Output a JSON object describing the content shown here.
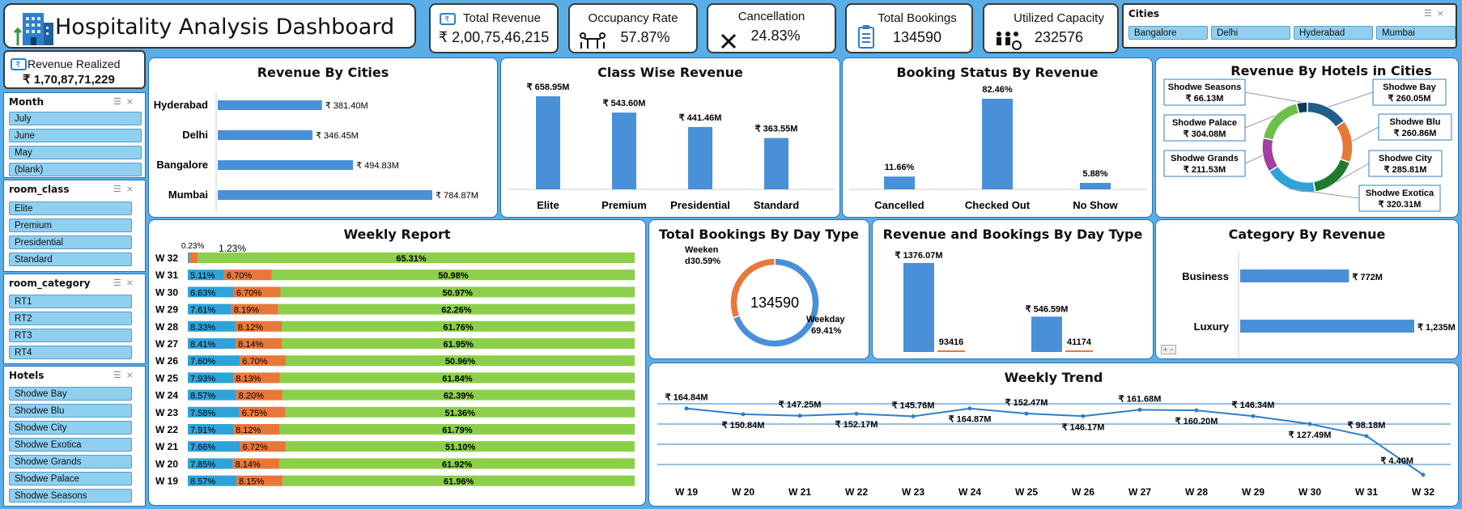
{
  "header": {
    "title": "Hospitality Analysis Dashboard"
  },
  "kpis": {
    "total_revenue": {
      "label": "Total Revenue",
      "value": "₹ 2,00,75,46,215"
    },
    "occupancy": {
      "label": "Occupancy Rate",
      "value": "57.87%"
    },
    "cancellation": {
      "label": "Cancellation",
      "value": "24.83%"
    },
    "bookings": {
      "label": "Total Bookings",
      "value": "134590"
    },
    "capacity": {
      "label": "Utilized Capacity",
      "value": "232576"
    },
    "realized": {
      "label": "Revenue Realized",
      "value": "₹ 1,70,87,71,229"
    }
  },
  "slicers": {
    "cities": {
      "title": "Cities",
      "items": [
        "Bangalore",
        "Delhi",
        "Hyderabad",
        "Mumbai"
      ]
    },
    "month": {
      "title": "Month",
      "items": [
        "July",
        "June",
        "May",
        "(blank)"
      ]
    },
    "room_class": {
      "title": "room_class",
      "items": [
        "Elite",
        "Premium",
        "Presidential",
        "Standard"
      ]
    },
    "room_category": {
      "title": "room_category",
      "items": [
        "RT1",
        "RT2",
        "RT3",
        "RT4"
      ]
    },
    "hotels": {
      "title": "Hotels",
      "items": [
        "Shodwe Bay",
        "Shodwe Blu",
        "Shodwe City",
        "Shodwe Exotica",
        "Shodwe Grands",
        "Shodwe Palace",
        "Shodwe Seasons"
      ]
    }
  },
  "chart_data": [
    {
      "id": "cities",
      "type": "bar",
      "orientation": "horizontal",
      "title": "Revenue By Cities",
      "categories": [
        "Hyderabad",
        "Delhi",
        "Bangalore",
        "Mumbai"
      ],
      "values": [
        381.4,
        346.45,
        494.83,
        784.87
      ],
      "labels": [
        "₹ 381.40M",
        "₹ 346.45M",
        "₹ 494.83M",
        "₹ 784.87M"
      ],
      "color": "#4a90d9"
    },
    {
      "id": "class",
      "type": "bar",
      "title": "Class Wise Revenue",
      "categories": [
        "Elite",
        "Premium",
        "Presidential",
        "Standard"
      ],
      "values": [
        658.95,
        543.6,
        441.46,
        363.55
      ],
      "labels": [
        "₹ 658.95M",
        "₹ 543.60M",
        "₹ 441.46M",
        "₹ 363.55M"
      ],
      "color": "#4a90d9"
    },
    {
      "id": "status",
      "type": "bar",
      "title": "Booking Status By Revenue",
      "categories": [
        "Cancelled",
        "Checked Out",
        "No Show"
      ],
      "values": [
        11.66,
        82.46,
        5.88
      ],
      "labels": [
        "11.66%",
        "82.46%",
        "5.88%"
      ],
      "color": "#4a90d9"
    },
    {
      "id": "hotels",
      "type": "pie",
      "title": "Revenue By Hotels in Cities",
      "categories": [
        "Shodwe Bay",
        "Shodwe Blu",
        "Shodwe City",
        "Shodwe Exotica",
        "Shodwe Grands",
        "Shodwe Palace",
        "Shodwe Seasons"
      ],
      "values": [
        260.05,
        260.86,
        285.81,
        320.31,
        211.53,
        304.08,
        66.13
      ],
      "labels": [
        "₹ 260.05M",
        "₹ 260.86M",
        "₹ 285.81M",
        "₹ 320.31M",
        "₹ 211.53M",
        "₹ 304.08M",
        "₹ 66.13M"
      ],
      "colors": [
        "#1f5f8b",
        "#e8783a",
        "#1e7a2e",
        "#2ea3d8",
        "#a040a0",
        "#6cc04a",
        "#143a5a"
      ]
    },
    {
      "id": "weekly",
      "type": "bar",
      "stacked": true,
      "orientation": "horizontal",
      "title": "Weekly Report",
      "categories": [
        "W 32",
        "W 31",
        "W 30",
        "W 29",
        "W 28",
        "W 27",
        "W 26",
        "W 25",
        "W 24",
        "W 23",
        "W 22",
        "W 21",
        "W 20",
        "W 19"
      ],
      "series": [
        {
          "values": [
            0.23,
            5.11,
            6.63,
            7.61,
            8.33,
            8.41,
            7.6,
            7.93,
            8.57,
            7.58,
            7.91,
            7.66,
            7.85,
            8.57
          ],
          "labels": [
            "0.23%",
            "5.11%",
            "6.63%",
            "7.61%",
            "8.33%",
            "8.41%",
            "7.60%",
            "7.93%",
            "8.57%",
            "7.58%",
            "7.91%",
            "7.66%",
            "7.85%",
            "8.57%"
          ],
          "color": "#2ea3d8"
        },
        {
          "values": [
            1.23,
            6.7,
            6.7,
            8.19,
            8.12,
            8.14,
            6.7,
            8.13,
            8.2,
            6.75,
            8.12,
            6.72,
            8.14,
            8.15
          ],
          "labels": [
            "1.23%",
            "6.70%",
            "6.70%",
            "8.19%",
            "8.12%",
            "8.14%",
            "6.70%",
            "8.13%",
            "8.20%",
            "6.75%",
            "8.12%",
            "6.72%",
            "8.14%",
            "8.15%"
          ],
          "color": "#e8783a"
        },
        {
          "values": [
            65.31,
            50.98,
            50.97,
            62.26,
            61.76,
            61.95,
            50.96,
            61.84,
            62.39,
            51.36,
            61.79,
            51.1,
            61.92,
            61.96
          ],
          "labels": [
            "65.31%",
            "50.98%",
            "50.97%",
            "62.26%",
            "61.76%",
            "61.95%",
            "50.96%",
            "61.84%",
            "62.39%",
            "51.36%",
            "61.79%",
            "51.10%",
            "61.92%",
            "61.96%"
          ],
          "color": "#8ccf4a"
        }
      ]
    },
    {
      "id": "daytype",
      "type": "pie",
      "title": "Total Bookings By Day Type",
      "center": "134590",
      "categories": [
        "Weekday",
        "Weekend"
      ],
      "values": [
        69.41,
        30.59
      ],
      "labels": [
        "69.41%",
        "30.59%"
      ],
      "label_texts": [
        "Weekday",
        "Weeken",
        "d30.59%",
        "69.41%"
      ],
      "colors": [
        "#4a90d9",
        "#e8783a"
      ]
    },
    {
      "id": "revbook",
      "type": "bar",
      "title": "Revenue and Bookings By Day Type",
      "groups": 2,
      "series": [
        {
          "values": [
            1376.07,
            546.59
          ],
          "labels": [
            "₹ 1376.07M",
            "₹ 546.59M"
          ],
          "color": "#4a90d9"
        },
        {
          "values": [
            93416,
            41174
          ],
          "labels": [
            "93416",
            "41174"
          ],
          "color": "#e8783a"
        }
      ]
    },
    {
      "id": "category",
      "type": "bar",
      "orientation": "horizontal",
      "title": "Category By Revenue",
      "categories": [
        "Business",
        "Luxury"
      ],
      "values": [
        772,
        1235
      ],
      "labels": [
        "₹ 772M",
        "₹ 1,235M"
      ],
      "color": "#4a90d9"
    },
    {
      "id": "trend",
      "type": "line",
      "title": "Weekly Trend",
      "x": [
        "W 19",
        "W 20",
        "W 21",
        "W 22",
        "W 23",
        "W 24",
        "W 25",
        "W 26",
        "W 27",
        "W 28",
        "W 29",
        "W 30",
        "W 31",
        "W 32"
      ],
      "values": [
        164.84,
        150.84,
        147.25,
        152.17,
        145.76,
        164.87,
        152.47,
        146.17,
        161.68,
        160.2,
        146.34,
        127.49,
        98.18,
        4.4
      ],
      "labels": [
        "₹ 164.84M",
        "₹ 150.84M",
        "₹ 147.25M",
        "₹ 152.17M",
        "₹ 145.76M",
        "₹ 164.87M",
        "₹ 152.47M",
        "₹ 146.17M",
        "₹ 161.68M",
        "₹ 160.20M",
        "₹ 146.34M",
        "₹ 127.49M",
        "₹ 98.18M",
        "₹ 4.40M"
      ],
      "color": "#2f7fc8"
    }
  ]
}
